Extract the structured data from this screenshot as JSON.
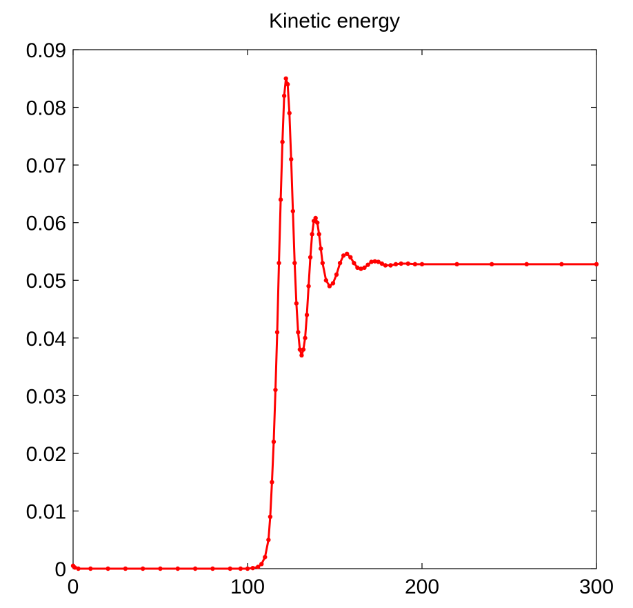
{
  "chart_data": {
    "type": "scatter",
    "title": "Kinetic energy",
    "xlabel": "",
    "ylabel": "",
    "xlim": [
      0,
      300
    ],
    "ylim": [
      0,
      0.09
    ],
    "xticks": [
      0,
      100,
      200,
      300
    ],
    "xtick_labels": [
      "0",
      "100",
      "200",
      "300"
    ],
    "yticks": [
      0,
      0.01,
      0.02,
      0.03,
      0.04,
      0.05,
      0.06,
      0.07,
      0.08,
      0.09
    ],
    "ytick_labels": [
      "0",
      "0.01",
      "0.02",
      "0.03",
      "0.04",
      "0.05",
      "0.06",
      "0.07",
      "0.08",
      "0.09"
    ],
    "grid": false,
    "marker_color": "#ff0000",
    "series": [
      {
        "points": [
          [
            0,
            0.0005
          ],
          [
            1,
            0.0002
          ],
          [
            3,
            0
          ],
          [
            10,
            0
          ],
          [
            20,
            0
          ],
          [
            30,
            0
          ],
          [
            40,
            0
          ],
          [
            50,
            0
          ],
          [
            60,
            0
          ],
          [
            70,
            0
          ],
          [
            80,
            0
          ],
          [
            90,
            0
          ],
          [
            96,
            0
          ],
          [
            100,
            0
          ],
          [
            103,
            0.0001
          ],
          [
            106,
            0.0003
          ],
          [
            108,
            0.0008
          ],
          [
            110,
            0.002
          ],
          [
            112,
            0.005
          ],
          [
            113,
            0.009
          ],
          [
            114,
            0.015
          ],
          [
            115,
            0.022
          ],
          [
            116,
            0.031
          ],
          [
            117,
            0.041
          ],
          [
            118,
            0.053
          ],
          [
            119,
            0.064
          ],
          [
            120,
            0.074
          ],
          [
            121,
            0.082
          ],
          [
            122,
            0.085
          ],
          [
            123,
            0.084
          ],
          [
            124,
            0.079
          ],
          [
            125,
            0.071
          ],
          [
            126,
            0.062
          ],
          [
            127,
            0.053
          ],
          [
            128,
            0.046
          ],
          [
            129,
            0.041
          ],
          [
            130,
            0.038
          ],
          [
            131,
            0.037
          ],
          [
            132,
            0.038
          ],
          [
            133,
            0.04
          ],
          [
            134,
            0.044
          ],
          [
            135,
            0.049
          ],
          [
            136,
            0.054
          ],
          [
            137,
            0.058
          ],
          [
            138,
            0.0603
          ],
          [
            139,
            0.0608
          ],
          [
            140,
            0.06
          ],
          [
            141,
            0.058
          ],
          [
            142,
            0.0555
          ],
          [
            143,
            0.053
          ],
          [
            145,
            0.05
          ],
          [
            147,
            0.049
          ],
          [
            149,
            0.0495
          ],
          [
            151,
            0.051
          ],
          [
            153,
            0.053
          ],
          [
            155,
            0.0543
          ],
          [
            157,
            0.0546
          ],
          [
            159,
            0.054
          ],
          [
            161,
            0.053
          ],
          [
            163,
            0.0522
          ],
          [
            165,
            0.052
          ],
          [
            167,
            0.0522
          ],
          [
            169,
            0.0527
          ],
          [
            171,
            0.0532
          ],
          [
            173,
            0.0533
          ],
          [
            175,
            0.0532
          ],
          [
            177,
            0.0529
          ],
          [
            179,
            0.0526
          ],
          [
            182,
            0.0526
          ],
          [
            185,
            0.0528
          ],
          [
            188,
            0.0529
          ],
          [
            192,
            0.0529
          ],
          [
            196,
            0.0528
          ],
          [
            200,
            0.0528
          ],
          [
            220,
            0.0528
          ],
          [
            240,
            0.0528
          ],
          [
            260,
            0.0528
          ],
          [
            280,
            0.0528
          ],
          [
            300,
            0.0528
          ]
        ]
      }
    ]
  }
}
